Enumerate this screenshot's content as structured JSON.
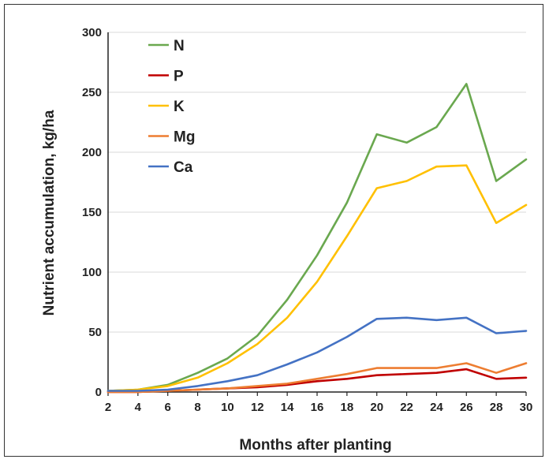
{
  "chart_data": {
    "type": "line",
    "title": "",
    "xlabel": "Months after planting",
    "ylabel": "Nutrient accumulation, kg/ha",
    "x": [
      2,
      4,
      6,
      8,
      10,
      12,
      14,
      16,
      18,
      20,
      22,
      24,
      26,
      28,
      30
    ],
    "xticks": [
      "2",
      "4",
      "6",
      "8",
      "10",
      "12",
      "14",
      "16",
      "18",
      "20",
      "22",
      "24",
      "26",
      "28",
      "30"
    ],
    "yticks": [
      "0",
      "50",
      "100",
      "150",
      "200",
      "250",
      "300"
    ],
    "xlim": [
      2,
      30
    ],
    "ylim": [
      0,
      300
    ],
    "grid": "horizontal",
    "legend_position": "top-left",
    "series": [
      {
        "name": "N",
        "color": "#6aa84f",
        "values": [
          1,
          2,
          6,
          16,
          28,
          47,
          77,
          114,
          158,
          215,
          208,
          221,
          257,
          176,
          194
        ]
      },
      {
        "name": "P",
        "color": "#c00000",
        "values": [
          0,
          0,
          1,
          2,
          3,
          4,
          6,
          9,
          11,
          14,
          15,
          16,
          19,
          11,
          12
        ]
      },
      {
        "name": "K",
        "color": "#ffc000",
        "values": [
          1,
          2,
          5,
          12,
          24,
          40,
          62,
          92,
          130,
          170,
          176,
          188,
          189,
          141,
          156
        ]
      },
      {
        "name": "Mg",
        "color": "#ed7d31",
        "values": [
          0,
          0,
          1,
          2,
          3,
          5,
          7,
          11,
          15,
          20,
          20,
          20,
          24,
          16,
          24
        ]
      },
      {
        "name": "Ca",
        "color": "#4472c4",
        "values": [
          1,
          1,
          2,
          5,
          9,
          14,
          23,
          33,
          46,
          61,
          62,
          60,
          62,
          49,
          51
        ]
      }
    ]
  }
}
